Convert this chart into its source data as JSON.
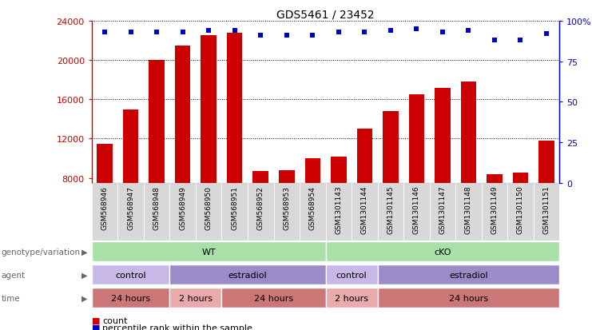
{
  "title": "GDS5461 / 23452",
  "samples": [
    "GSM568946",
    "GSM568947",
    "GSM568948",
    "GSM568949",
    "GSM568950",
    "GSM568951",
    "GSM568952",
    "GSM568953",
    "GSM568954",
    "GSM1301143",
    "GSM1301144",
    "GSM1301145",
    "GSM1301146",
    "GSM1301147",
    "GSM1301148",
    "GSM1301149",
    "GSM1301150",
    "GSM1301151"
  ],
  "counts": [
    11500,
    15000,
    20000,
    21500,
    22500,
    22800,
    8700,
    8800,
    10000,
    10200,
    13000,
    14800,
    16500,
    17200,
    17800,
    8400,
    8500,
    11800
  ],
  "percentile": [
    93,
    93,
    93,
    93,
    94,
    94,
    91,
    91,
    91,
    93,
    93,
    94,
    95,
    93,
    94,
    88,
    88,
    92
  ],
  "ymin": 7500,
  "ymax": 24000,
  "yticks_left": [
    8000,
    12000,
    16000,
    20000,
    24000
  ],
  "yticks_right": [
    0,
    25,
    50,
    75,
    100
  ],
  "bar_color": "#cc0000",
  "dot_color": "#0000cc",
  "bar_width": 0.6,
  "genotype_groups": [
    {
      "label": "WT",
      "start": 0,
      "end": 8
    },
    {
      "label": "cKO",
      "start": 9,
      "end": 17
    }
  ],
  "agent_groups": [
    {
      "label": "control",
      "start": 0,
      "end": 2,
      "type": "control"
    },
    {
      "label": "estradiol",
      "start": 3,
      "end": 8,
      "type": "estradiol"
    },
    {
      "label": "control",
      "start": 9,
      "end": 10,
      "type": "control"
    },
    {
      "label": "estradiol",
      "start": 11,
      "end": 17,
      "type": "estradiol"
    }
  ],
  "time_groups": [
    {
      "label": "24 hours",
      "start": 0,
      "end": 2,
      "type": "dark"
    },
    {
      "label": "2 hours",
      "start": 3,
      "end": 4,
      "type": "light"
    },
    {
      "label": "24 hours",
      "start": 5,
      "end": 8,
      "type": "dark"
    },
    {
      "label": "2 hours",
      "start": 9,
      "end": 10,
      "type": "light"
    },
    {
      "label": "24 hours",
      "start": 11,
      "end": 17,
      "type": "dark"
    }
  ],
  "genotype_color": "#a8e0a8",
  "agent_control_color": "#c8b8e8",
  "agent_estradiol_color": "#9b8bc8",
  "time_dark_color": "#cc7777",
  "time_light_color": "#e8aaaa",
  "label_color": "#666666",
  "legend_count_color": "#cc0000",
  "legend_pct_color": "#0000cc"
}
